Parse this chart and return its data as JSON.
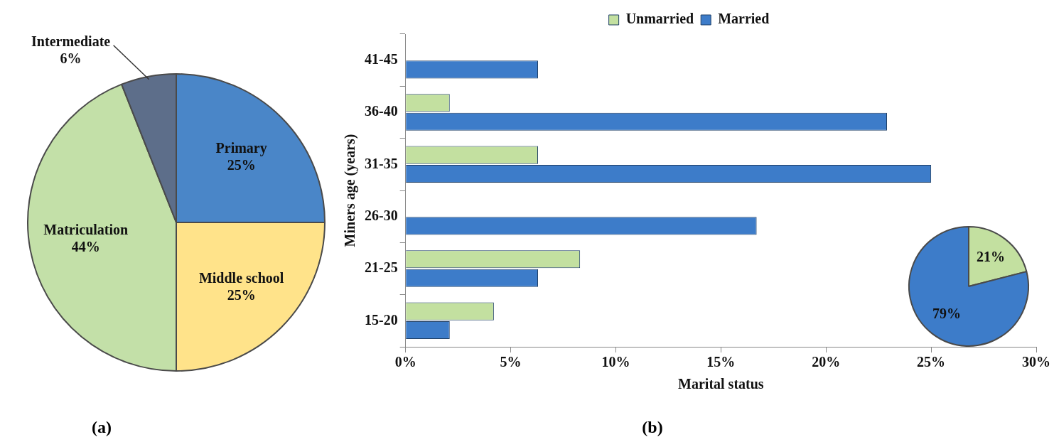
{
  "chart_data": [
    {
      "type": "pie",
      "categories": [
        "Primary",
        "Middle school",
        "Matriculation",
        "Intermediate"
      ],
      "values": [
        25,
        25,
        44,
        6
      ],
      "colors": [
        "#4a86c8",
        "#ffe38a",
        "#c3e0a8",
        "#5d6e8a"
      ],
      "value_labels": [
        "25%",
        "25%",
        "44%",
        "6%"
      ],
      "annotations": [
        "(a)"
      ]
    },
    {
      "type": "bar",
      "orientation": "horizontal",
      "categories": [
        "41-45",
        "36-40",
        "31-35",
        "26-30",
        "21-25",
        "15-20"
      ],
      "series": [
        {
          "name": "Unmarried",
          "color": "#c3e0a0",
          "values": [
            null,
            2.1,
            6.3,
            null,
            8.3,
            4.2
          ]
        },
        {
          "name": "Married",
          "color": "#3d7cc9",
          "values": [
            6.3,
            22.9,
            25,
            16.7,
            6.3,
            2.1
          ]
        }
      ],
      "xlim": [
        0,
        30
      ],
      "xticks": [
        {
          "value": 0,
          "label": "0%"
        },
        {
          "value": 5,
          "label": "5%"
        },
        {
          "value": 10,
          "label": "10%"
        },
        {
          "value": 15,
          "label": "15%"
        },
        {
          "value": 20,
          "label": "20%"
        },
        {
          "value": 25,
          "label": "25%"
        },
        {
          "value": 30,
          "label": "30%"
        }
      ],
      "xlabel": "Marital status",
      "ylabel": "Miners age (years)",
      "legend": "top",
      "grid": false,
      "annotations": [
        "(b)"
      ]
    },
    {
      "type": "pie",
      "categories": [
        null,
        null
      ],
      "values": [
        21,
        79
      ],
      "colors": [
        "#c3e0a0",
        "#3d7cc9"
      ],
      "value_labels": [
        "21%",
        "79%"
      ]
    }
  ]
}
